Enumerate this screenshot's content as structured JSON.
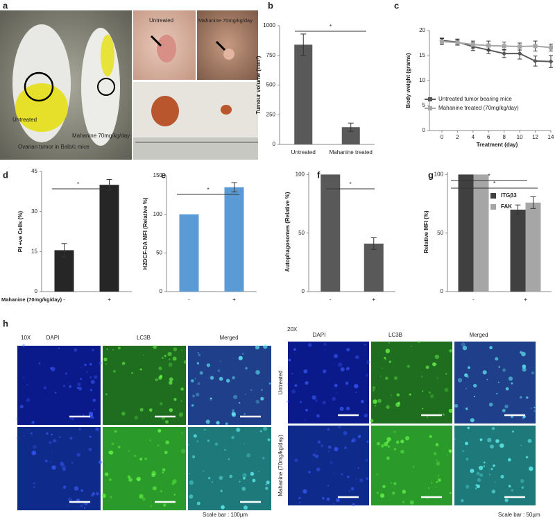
{
  "panel_a": {
    "panel": "a",
    "mouse_left": "Untreated",
    "mouse_right": "Mahanine 70mg/kg/day",
    "caption": "Ovarian tumor in Balb/c mice",
    "photo_untreated": "Untreated",
    "photo_treated": "Mahanine 70mg/kg/day"
  },
  "chart_data": [
    {
      "type": "bar",
      "panel": "b",
      "y_label": "Tumour volume (mm³)",
      "categories": [
        "Untreated",
        "Mahanine treated"
      ],
      "values": [
        840,
        145
      ],
      "errors": [
        90,
        35
      ],
      "color": "#595959",
      "ylim": [
        0,
        1000
      ],
      "yticks": [
        0,
        250,
        500,
        750,
        1000
      ],
      "significance": [
        "*"
      ]
    },
    {
      "type": "line",
      "panel": "c",
      "y_label": "Body weight (grams)",
      "x_label": "Treatment (day)",
      "x": [
        0,
        2,
        4,
        6,
        8,
        10,
        12,
        14
      ],
      "xlim": [
        -1.6,
        14
      ],
      "xticks": [
        0,
        2,
        4,
        6,
        8,
        10,
        12,
        14
      ],
      "ylim": [
        0,
        20
      ],
      "yticks": [
        0,
        5,
        10,
        15,
        20
      ],
      "series": [
        {
          "name": "Untreated tumor bearing mice",
          "color": "#595959",
          "values": [
            18,
            17.7,
            16.8,
            16.1,
            15.4,
            15.4,
            13.9,
            13.8
          ],
          "errors": [
            0.5,
            0.6,
            0.8,
            0.7,
            0.8,
            1.1,
            1,
            1.2
          ]
        },
        {
          "name": "Mahanine treated (70mg/kg/day)",
          "color": "#a6a6a6",
          "values": [
            17.8,
            17.6,
            17.2,
            17,
            16.9,
            16.8,
            16.9,
            16.6
          ],
          "errors": [
            0.6,
            0.5,
            0.7,
            0.9,
            0.8,
            0.7,
            1,
            0.7
          ]
        }
      ]
    },
    {
      "type": "bar",
      "panel": "d",
      "y_label": "PI +ve Cells (%)",
      "row_label": "Mahanine (70mg/kg/day)",
      "categories": [
        "-",
        "+"
      ],
      "values": [
        15.5,
        40
      ],
      "errors": [
        2.5,
        2
      ],
      "color": "#262626",
      "ylim": [
        0,
        45
      ],
      "yticks": [
        0,
        15,
        30,
        45
      ],
      "significance": [
        "*"
      ]
    },
    {
      "type": "bar",
      "panel": "e",
      "y_label": "H2DCF-DA MFI (Relative %)",
      "categories": [
        "-",
        "+"
      ],
      "values": [
        100,
        135
      ],
      "errors": [
        0,
        6
      ],
      "color": "#5b9bd5",
      "ylim": [
        0,
        150
      ],
      "yticks": [
        0,
        50,
        100,
        150
      ],
      "significance": [
        "*"
      ]
    },
    {
      "type": "bar",
      "panel": "f",
      "y_label": "Autophagosomes (Relative %)",
      "categories": [
        "-",
        "+"
      ],
      "values": [
        100,
        41
      ],
      "errors": [
        0,
        5
      ],
      "color": "#595959",
      "ylim": [
        0,
        102
      ],
      "yticks": [
        0,
        50,
        100
      ],
      "significance": [
        "*"
      ]
    },
    {
      "type": "bar",
      "panel": "g",
      "y_label": "Relative MFI (%)",
      "categories": [
        "-",
        "+"
      ],
      "ylim": [
        0,
        102
      ],
      "yticks": [
        0,
        50,
        100
      ],
      "significance": [
        "*",
        "*"
      ],
      "series": [
        {
          "name": "ITGβ3",
          "color": "#404040",
          "values": [
            100,
            70
          ],
          "errors": [
            0,
            4
          ]
        },
        {
          "name": "FAK",
          "color": "#a6a6a6",
          "values": [
            100,
            76
          ],
          "errors": [
            0,
            5
          ]
        }
      ]
    }
  ],
  "panel_h": {
    "panel": "h",
    "mag_left": "10X",
    "mag_right": "20X",
    "columns": [
      "DAPI",
      "LC3B",
      "Merged"
    ],
    "rows": [
      "Untreated",
      "Mahanine (70mg/kg/day)"
    ],
    "scale_left": "Scale bar : 100µm",
    "scale_right": "Scale bar : 50µm"
  }
}
